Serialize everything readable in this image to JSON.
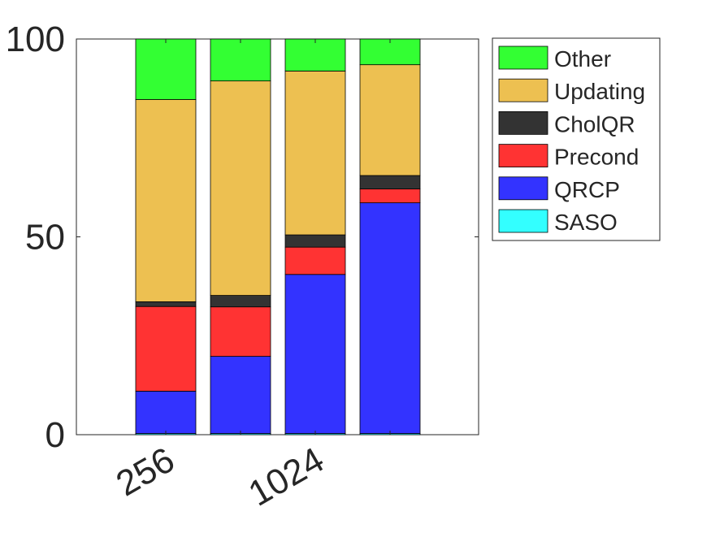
{
  "chart_data": {
    "type": "bar",
    "stacked": true,
    "categories": [
      "256",
      "",
      "1024",
      ""
    ],
    "x_tick_labels": [
      "256",
      "1024"
    ],
    "y_ticks": [
      0,
      50,
      100
    ],
    "ylim": [
      0,
      100
    ],
    "xlabel": "",
    "ylabel": "",
    "title": "",
    "grid": false,
    "legend_position": "outside-top-right",
    "series": [
      {
        "name": "SASO",
        "color": "#33ffff",
        "values": [
          0.3,
          0.3,
          0.3,
          0.3
        ]
      },
      {
        "name": "QRCP",
        "color": "#3333ff",
        "values": [
          10.7,
          19.5,
          40.2,
          58.3
        ]
      },
      {
        "name": "Precond",
        "color": "#ff3333",
        "values": [
          21.4,
          12.5,
          6.9,
          3.5
        ]
      },
      {
        "name": "CholQR",
        "color": "#333333",
        "values": [
          1.2,
          2.9,
          3.1,
          3.4
        ]
      },
      {
        "name": "Updating",
        "color": "#edc051",
        "values": [
          51.1,
          54.2,
          41.4,
          28.0
        ]
      },
      {
        "name": "Other",
        "color": "#33ff33",
        "values": [
          15.3,
          10.6,
          8.1,
          6.5
        ]
      }
    ],
    "legend_order": [
      "Other",
      "Updating",
      "CholQR",
      "Precond",
      "QRCP",
      "SASO"
    ]
  }
}
